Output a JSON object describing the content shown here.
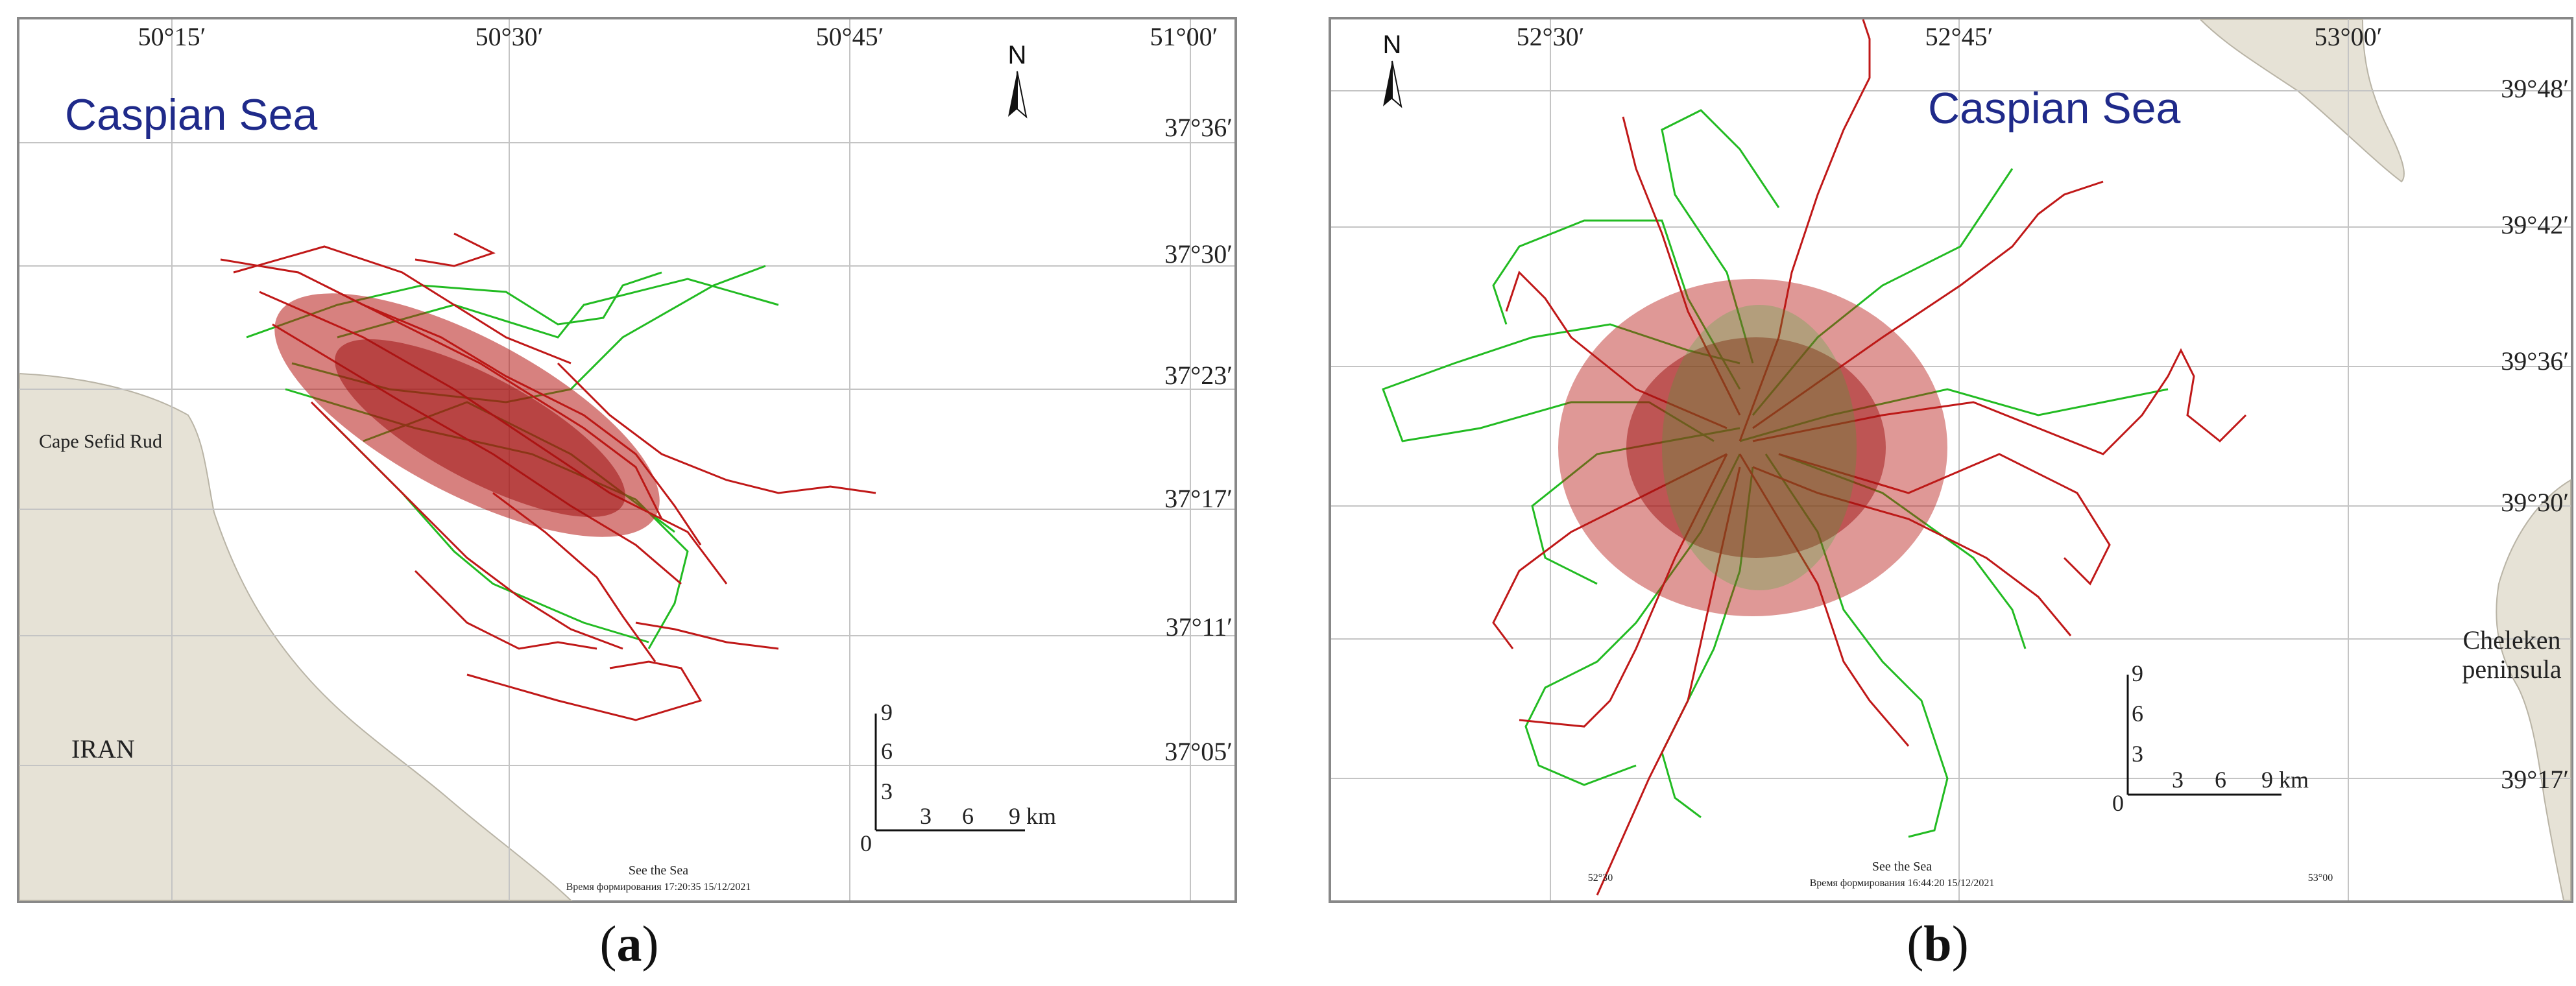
{
  "panels": [
    {
      "id": "a",
      "caption_letter": "a",
      "sea_label": "Caspian Sea",
      "north_label": "N",
      "top_labels": [
        "50°15′",
        "50°30′",
        "50°45′",
        "51°00′"
      ],
      "right_labels": [
        "37°36′",
        "37°30′",
        "37°23′",
        "37°17′",
        "37°11′",
        "37°05′"
      ],
      "land_labels": [
        "Cape Sefid Rud",
        "IRAN"
      ],
      "scale": {
        "y_ticks": [
          "9",
          "6",
          "3",
          "0"
        ],
        "x_ticks": [
          "3",
          "6",
          "9 km"
        ]
      },
      "footer": [
        "See the Sea",
        "Время формирования 17:20:35 15/12/2021"
      ]
    },
    {
      "id": "b",
      "caption_letter": "b",
      "sea_label": "Caspian Sea",
      "north_label": "N",
      "top_labels": [
        "52°30′",
        "52°45′",
        "53°00′"
      ],
      "right_labels": [
        "39°48′",
        "39°42′",
        "39°36′",
        "39°30′",
        "39°17′"
      ],
      "land_labels": [
        "Cheleken",
        "peninsula"
      ],
      "scale": {
        "y_ticks": [
          "9",
          "6",
          "3",
          "0"
        ],
        "x_ticks": [
          "3",
          "6",
          "9 km"
        ]
      },
      "footer": [
        "See the Sea",
        "Время формирования 16:44:20 15/12/2021"
      ],
      "bottom_small": [
        "52°30",
        "53°00"
      ]
    }
  ],
  "colors": {
    "land": "#e6e2d6",
    "grid": "#c4c4c4",
    "track_red": "#c01818",
    "track_green": "#22bb22",
    "sea_label": "#1f2a8a"
  }
}
